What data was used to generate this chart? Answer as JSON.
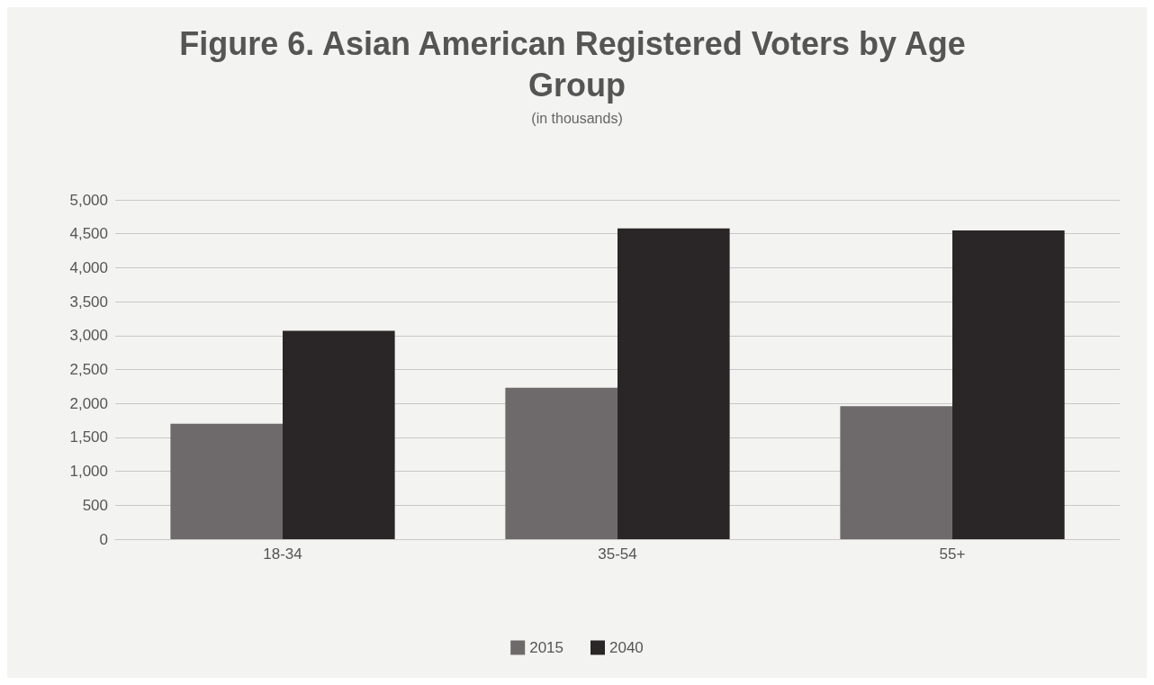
{
  "chart_data": {
    "type": "bar",
    "title": "Figure 6. Asian American Registered Voters by Age Group",
    "subtitle": "(in thousands)",
    "categories": [
      "18-34",
      "35-54",
      "55+"
    ],
    "series": [
      {
        "name": "2015",
        "color": "#6e6a6b",
        "values": [
          1700,
          2230,
          1960
        ]
      },
      {
        "name": "2040",
        "color": "#2a2627",
        "values": [
          3070,
          4580,
          4550
        ]
      }
    ],
    "ylim": [
      0,
      5000
    ],
    "yticks": [
      0,
      500,
      {
        "value": 1000,
        "label": "1,000"
      },
      {
        "value": 1500,
        "label": "1,500"
      },
      {
        "value": 2000,
        "label": "2,000"
      },
      {
        "value": 2500,
        "label": "2,500"
      },
      {
        "value": 3000,
        "label": "3,000"
      },
      {
        "value": 3500,
        "label": "3,500"
      },
      {
        "value": 4000,
        "label": "4,000"
      },
      {
        "value": 4500,
        "label": "4,500"
      },
      {
        "value": 5000,
        "label": "5,000"
      }
    ],
    "grid": "y",
    "legend": "bottom"
  }
}
